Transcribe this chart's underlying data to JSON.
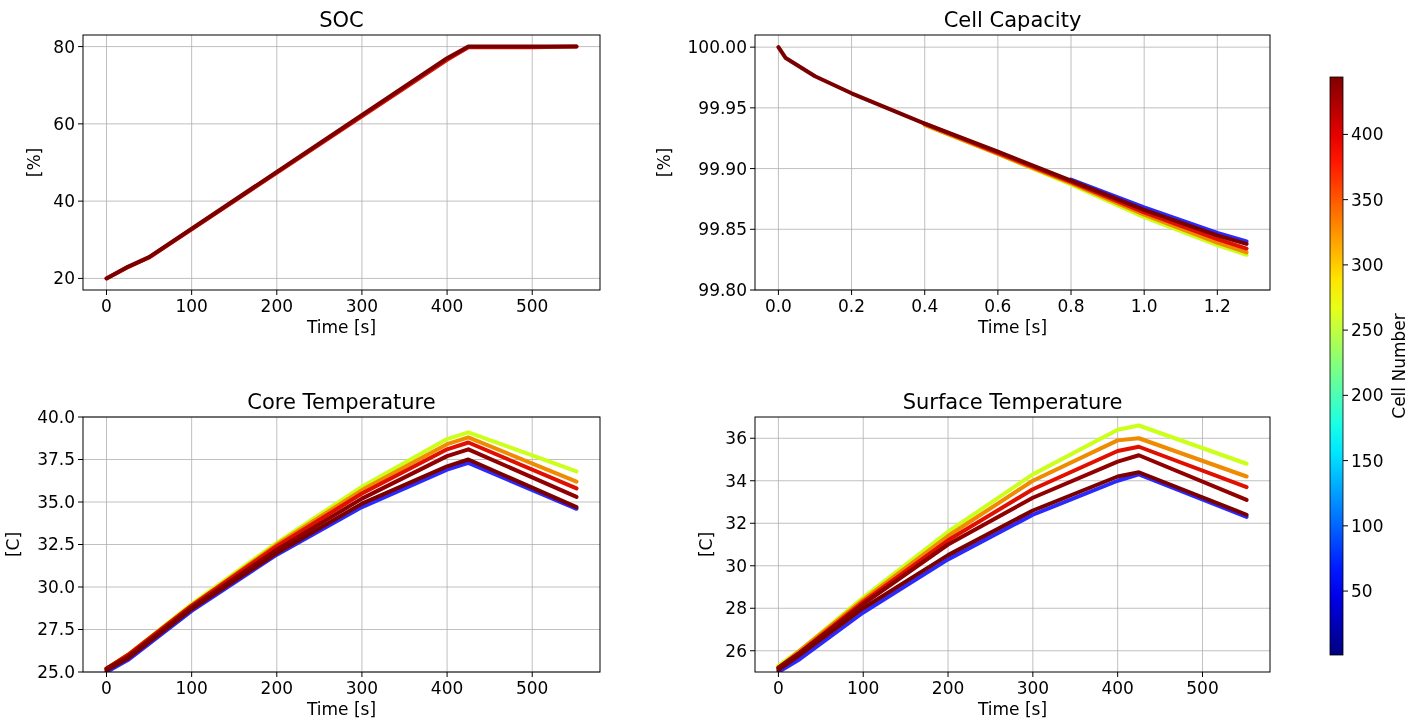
{
  "chart_data": [
    {
      "type": "line",
      "title": "SOC",
      "xlabel": "Time [s]",
      "ylabel": "[%]",
      "xlim": [
        -27.6,
        579.6
      ],
      "ylim": [
        17,
        83
      ],
      "xticks": [
        0,
        100,
        200,
        300,
        400,
        500
      ],
      "yticks": [
        20,
        40,
        60,
        80
      ],
      "grid": true,
      "x": [
        0,
        25,
        50,
        400,
        425,
        500,
        552
      ],
      "series": [
        {
          "color": "#e01000",
          "values": [
            20,
            22.9,
            25.4,
            76.6,
            79.8,
            79.8,
            80
          ]
        },
        {
          "color": "#7a0000",
          "values": [
            20,
            23,
            25.5,
            77,
            80,
            80,
            80
          ]
        }
      ]
    },
    {
      "type": "line",
      "title": "Cell Capacity",
      "xlabel": "Time [s]",
      "ylabel": "[%]",
      "xlim": [
        -0.064,
        1.344
      ],
      "ylim": [
        99.8,
        100.01
      ],
      "xticks": [
        {
          "value": 0,
          "label": "0.0"
        },
        0.2,
        0.4,
        0.6,
        0.8,
        {
          "value": 1,
          "label": "1.0"
        },
        1.2
      ],
      "yticks": [
        {
          "value": 99.8,
          "label": "99.80"
        },
        {
          "value": 99.85,
          "label": "99.85"
        },
        {
          "value": 99.9,
          "label": "99.90"
        },
        {
          "value": 99.95,
          "label": "99.95"
        },
        {
          "value": 100,
          "label": "100.00"
        }
      ],
      "grid": true,
      "clabel": "Cell Number",
      "clim": [
        1,
        444
      ],
      "cticks": [
        50,
        100,
        150,
        200,
        250,
        300,
        350,
        400
      ],
      "x": [
        0,
        0.02,
        0.1,
        0.2,
        0.4,
        0.6,
        0.8,
        1,
        1.2,
        1.28
      ],
      "series": [
        {
          "color": "#2a2aff",
          "values": [
            null,
            null,
            null,
            null,
            null,
            null,
            99.891,
            99.868,
            99.847,
            99.84
          ]
        },
        {
          "color": "#ccff1a",
          "values": [
            null,
            null,
            null,
            null,
            99.936,
            99.912,
            99.887,
            99.86,
            99.837,
            99.829
          ]
        },
        {
          "color": "#f08a00",
          "values": [
            null,
            null,
            null,
            null,
            99.936,
            99.912,
            99.888,
            99.862,
            99.839,
            99.831
          ]
        },
        {
          "color": "#e01000",
          "values": [
            null,
            null,
            null,
            null,
            99.937,
            99.913,
            99.889,
            99.864,
            99.842,
            99.834
          ]
        },
        {
          "color": "#7a0000",
          "values": [
            100,
            99.991,
            99.976,
            99.962,
            99.937,
            99.914,
            99.89,
            99.866,
            99.845,
            99.838
          ]
        }
      ]
    },
    {
      "type": "line",
      "title": "Core Temperature",
      "xlabel": "Time [s]",
      "ylabel": "[C]",
      "xlim": [
        -27.6,
        579.6
      ],
      "ylim": [
        25,
        40
      ],
      "xticks": [
        0,
        100,
        200,
        300,
        400,
        500
      ],
      "yticks": [
        {
          "value": 25,
          "label": "25.0"
        },
        27.5,
        {
          "value": 30,
          "label": "30.0"
        },
        32.5,
        {
          "value": 35,
          "label": "35.0"
        },
        37.5,
        {
          "value": 40,
          "label": "40.0"
        }
      ],
      "grid": true,
      "x": [
        0,
        25,
        100,
        200,
        300,
        400,
        425,
        552
      ],
      "series": [
        {
          "color": "#2a2aff",
          "values": [
            25,
            25.7,
            28.6,
            31.9,
            34.7,
            36.9,
            37.3,
            34.6
          ]
        },
        {
          "color": "#ccff1a",
          "values": [
            25.2,
            26,
            29,
            32.6,
            35.9,
            38.7,
            39.1,
            36.8
          ]
        },
        {
          "color": "#f08a00",
          "values": [
            25.2,
            26,
            28.9,
            32.5,
            35.7,
            38.4,
            38.8,
            36.2
          ]
        },
        {
          "color": "#e01000",
          "values": [
            25.2,
            26,
            28.9,
            32.4,
            35.5,
            38.1,
            38.5,
            35.8
          ]
        },
        {
          "color": "#900000",
          "values": [
            25.2,
            25.9,
            28.8,
            32.2,
            35.2,
            37.7,
            38.1,
            35.3
          ]
        },
        {
          "color": "#7a0000",
          "values": [
            25.1,
            25.8,
            28.7,
            32,
            34.9,
            37.1,
            37.5,
            34.7
          ]
        }
      ]
    },
    {
      "type": "line",
      "title": "Surface Temperature",
      "xlabel": "Time [s]",
      "ylabel": "[C]",
      "xlim": [
        -27.6,
        579.6
      ],
      "ylim": [
        25,
        37
      ],
      "xticks": [
        0,
        100,
        200,
        300,
        400,
        500
      ],
      "yticks": [
        26,
        28,
        30,
        32,
        34,
        36
      ],
      "grid": true,
      "x": [
        0,
        25,
        100,
        200,
        300,
        400,
        425,
        552
      ],
      "series": [
        {
          "color": "#2a2aff",
          "values": [
            25,
            25.6,
            27.8,
            30.3,
            32.4,
            34,
            34.3,
            32.3
          ]
        },
        {
          "color": "#ccff1a",
          "values": [
            25.3,
            26,
            28.5,
            31.6,
            34.3,
            36.4,
            36.6,
            34.8
          ]
        },
        {
          "color": "#f08a00",
          "values": [
            25.2,
            26,
            28.4,
            31.4,
            34,
            35.9,
            36,
            34.2
          ]
        },
        {
          "color": "#e01000",
          "values": [
            25.2,
            25.9,
            28.3,
            31.2,
            33.6,
            35.4,
            35.6,
            33.7
          ]
        },
        {
          "color": "#900000",
          "values": [
            25.2,
            25.9,
            28.2,
            31,
            33.2,
            34.9,
            35.2,
            33.1
          ]
        },
        {
          "color": "#7a0000",
          "values": [
            25.1,
            25.8,
            28,
            30.5,
            32.6,
            34.2,
            34.4,
            32.4
          ]
        }
      ]
    }
  ]
}
